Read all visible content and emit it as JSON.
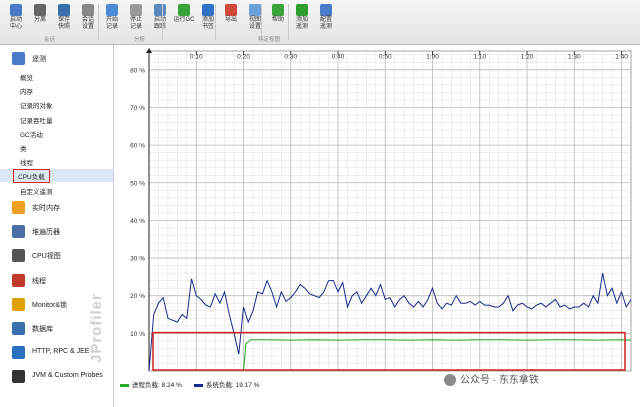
{
  "toolbar": {
    "buttons": [
      {
        "label1": "启动",
        "label2": "中心",
        "icon": "start-center-icon",
        "color": "#4a7bc8",
        "group": 0
      },
      {
        "label1": "分离",
        "label2": "",
        "icon": "detach-icon",
        "color": "#666666",
        "group": 0
      },
      {
        "label1": "保存",
        "label2": "快照",
        "icon": "save-snapshot-icon",
        "color": "#3a6fb0",
        "group": 0
      },
      {
        "label1": "会话",
        "label2": "设置",
        "icon": "session-settings-icon",
        "color": "#888888",
        "group": 0
      },
      {
        "label1": "开始",
        "label2": "记录",
        "icon": "start-recording-icon",
        "color": "#4c8bd6",
        "group": 1
      },
      {
        "label1": "停止",
        "label2": "记录",
        "icon": "stop-recording-icon",
        "color": "#999999",
        "group": 1
      },
      {
        "label1": "启动",
        "label2": "跟踪",
        "icon": "start-tracking-icon",
        "color": "#5a8ac0",
        "group": 1
      },
      {
        "label1": "运行GC",
        "label2": "",
        "icon": "run-gc-icon",
        "color": "#3aa33a",
        "group": 1
      },
      {
        "label1": "添加",
        "label2": "书签",
        "icon": "add-bookmark-icon",
        "color": "#2f72c9",
        "group": 1
      },
      {
        "label1": "导出",
        "label2": "",
        "icon": "export-icon",
        "color": "#d04a3a",
        "group": 2
      },
      {
        "label1": "视图",
        "label2": "设置",
        "icon": "view-settings-icon",
        "color": "#6aa0d8",
        "group": 2
      },
      {
        "label1": "帮助",
        "label2": "",
        "icon": "help-icon",
        "color": "#3aa33a",
        "group": 3
      },
      {
        "label1": "添加",
        "label2": "遥测",
        "icon": "add-telemetry-icon",
        "color": "#2e9e2e",
        "group": 4
      },
      {
        "label1": "配置",
        "label2": "遥测",
        "icon": "configure-telemetry-icon",
        "color": "#4a7bc8",
        "group": 4
      }
    ],
    "groups": [
      "会话",
      "分析",
      "特定视图"
    ]
  },
  "sidebar": {
    "telemetry_title": "遥测",
    "items": [
      "概览",
      "内存",
      "记录的对象",
      "记录吞吐量",
      "GC活动",
      "类",
      "线程",
      "CPU负载",
      "自定义遥测"
    ],
    "selected_index": 7,
    "sections": [
      {
        "label": "实时内存",
        "icon": "live-memory-icon",
        "color": "#f0a020"
      },
      {
        "label": "堆遍历器",
        "icon": "heap-walker-icon",
        "color": "#4a6fa8"
      },
      {
        "label": "CPU视图",
        "icon": "cpu-views-icon",
        "color": "#555555"
      },
      {
        "label": "线程",
        "icon": "threads-icon",
        "color": "#c0392b"
      },
      {
        "label": "Monitor&锁",
        "icon": "monitor-locks-icon",
        "color": "#e0a000"
      },
      {
        "label": "数据库",
        "icon": "databases-icon",
        "color": "#3a6fb0"
      },
      {
        "label": "HTTP, RPC & JEE",
        "icon": "http-rpc-jee-icon",
        "color": "#2a70c0"
      },
      {
        "label": "JVM & Custom Probes",
        "icon": "jvm-probes-icon",
        "color": "#333333"
      }
    ],
    "watermark": "JProfiler"
  },
  "chart_data": {
    "type": "line",
    "xlabel": "",
    "ylabel": "",
    "ylim": [
      0,
      85
    ],
    "x_ticks": [
      "0:10",
      "0:20",
      "0:30",
      "0:40",
      "0:50",
      "1:00",
      "1:10",
      "1:20",
      "1:30",
      "1:40"
    ],
    "y_ticks": [
      "10 %",
      "20 %",
      "30 %",
      "40 %",
      "50 %",
      "60 %",
      "70 %",
      "80 %"
    ],
    "y_tick_values": [
      10,
      20,
      30,
      40,
      50,
      60,
      70,
      80
    ],
    "xlim_seconds": [
      0,
      102
    ],
    "grid": true,
    "series": [
      {
        "name": "进程负载",
        "color": "#22aa22",
        "x": [
          20,
          20.5,
          21.5,
          25,
          30,
          35,
          40,
          45,
          50,
          55,
          60,
          65,
          70,
          75,
          80,
          85,
          90,
          95,
          100,
          102
        ],
        "values": [
          0,
          7.2,
          8.3,
          8.3,
          8.2,
          8.3,
          8.2,
          8.3,
          8.3,
          8.2,
          8.3,
          8.2,
          8.3,
          8.3,
          8.2,
          8.3,
          8.3,
          8.2,
          8.3,
          8.2
        ]
      },
      {
        "name": "系统负载",
        "color": "#1a2a8a",
        "x": [
          0,
          1,
          2,
          3,
          4,
          5,
          6,
          7,
          8,
          9,
          10,
          11,
          12,
          13,
          14,
          15,
          16,
          17,
          18,
          19,
          20,
          21,
          22,
          23,
          24,
          25,
          26,
          27,
          28,
          29,
          30,
          31,
          32,
          33,
          34,
          35,
          36,
          37,
          38,
          39,
          40,
          41,
          42,
          43,
          44,
          45,
          46,
          47,
          48,
          49,
          50,
          51,
          52,
          53,
          54,
          55,
          56,
          57,
          58,
          59,
          60,
          61,
          62,
          63,
          64,
          65,
          66,
          67,
          68,
          69,
          70,
          71,
          72,
          73,
          74,
          75,
          76,
          77,
          78,
          79,
          80,
          81,
          82,
          83,
          84,
          85,
          86,
          87,
          88,
          89,
          90,
          91,
          92,
          93,
          94,
          95,
          96,
          97,
          98,
          99,
          100,
          101,
          102
        ],
        "values": [
          0,
          15,
          18,
          19.5,
          14,
          13.5,
          13,
          15,
          14,
          24.5,
          20,
          19,
          17.5,
          17,
          20.5,
          18,
          21,
          15,
          10,
          4.5,
          17,
          13,
          16,
          21,
          20.5,
          24,
          21,
          17,
          21,
          18.5,
          19.5,
          21,
          23,
          22,
          20.5,
          20,
          19.5,
          21,
          24,
          24,
          21,
          23.5,
          17,
          20,
          21,
          18,
          20,
          22,
          20,
          23,
          19,
          19.5,
          17,
          19,
          20,
          18,
          17,
          18.5,
          17,
          19,
          22,
          18,
          16.5,
          18,
          17.5,
          20,
          18,
          18,
          18.5,
          17.5,
          18.5,
          17.5,
          17.5,
          17,
          17,
          18,
          20,
          16,
          17.5,
          18,
          17,
          16.5,
          17.5,
          18,
          17,
          18,
          19,
          17,
          17.5,
          16.5,
          17,
          17,
          18,
          17,
          20,
          18,
          26,
          20,
          22,
          18,
          21,
          17,
          19
        ]
      }
    ],
    "legend": [
      {
        "label": "进程负载: 8.24 %",
        "color": "#22aa22"
      },
      {
        "label": "系统负载: 19.17 %",
        "color": "#1a2a8a"
      }
    ],
    "legend_placement": "bottom-left"
  },
  "watermark_text": "公众号 · 东东拿铁"
}
